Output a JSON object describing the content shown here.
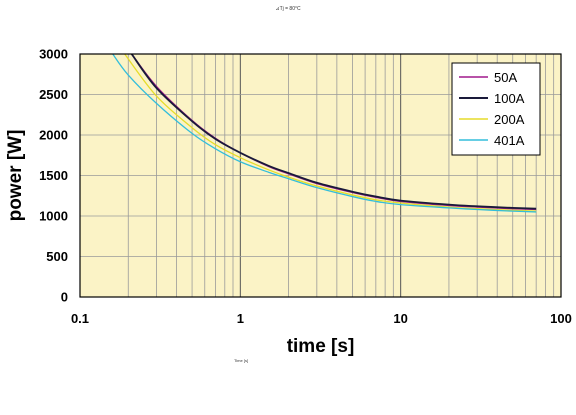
{
  "header_note": "⊿Tj = 80°C",
  "footer_note": "Time [s]",
  "colors": {
    "plot_background": "#fbf3c6",
    "grid": "#9a9a9a",
    "axis": "#000000"
  },
  "chart_data": {
    "type": "line",
    "title": "",
    "xlabel": "time [s]",
    "ylabel": "power [W]",
    "x_scale": "log",
    "xlim": [
      0.1,
      100
    ],
    "ylim": [
      0,
      3000
    ],
    "x_ticks": [
      "0.1",
      "1",
      "10",
      "100"
    ],
    "y_ticks": [
      "0",
      "500",
      "1000",
      "1500",
      "2000",
      "2500",
      "3000"
    ],
    "grid": true,
    "legend_position": "top-right",
    "series": [
      {
        "name": "50A",
        "color": "#a0198c",
        "x": [
          0.21,
          0.3,
          0.5,
          0.7,
          1,
          1.5,
          2,
          3,
          5,
          7,
          10,
          20,
          30,
          50,
          70
        ],
        "y": [
          3000,
          2600,
          2180,
          1960,
          1780,
          1610,
          1520,
          1400,
          1290,
          1230,
          1180,
          1130,
          1110,
          1090,
          1080
        ]
      },
      {
        "name": "100A",
        "color": "#1a1a3a",
        "x": [
          0.21,
          0.3,
          0.5,
          0.7,
          1,
          1.5,
          2,
          3,
          5,
          7,
          10,
          20,
          30,
          50,
          70
        ],
        "y": [
          3000,
          2580,
          2170,
          1950,
          1780,
          1620,
          1530,
          1410,
          1300,
          1240,
          1190,
          1140,
          1120,
          1100,
          1090
        ]
      },
      {
        "name": "200A",
        "color": "#e6dc2a",
        "x": [
          0.19,
          0.3,
          0.5,
          0.7,
          1,
          1.5,
          2,
          3,
          5,
          7,
          10,
          20,
          30,
          50,
          70
        ],
        "y": [
          3000,
          2480,
          2090,
          1880,
          1720,
          1570,
          1480,
          1370,
          1260,
          1200,
          1160,
          1110,
          1090,
          1070,
          1060
        ]
      },
      {
        "name": "401A",
        "color": "#33bedb",
        "x": [
          0.16,
          0.2,
          0.3,
          0.5,
          0.7,
          1,
          1.5,
          2,
          3,
          5,
          7,
          10,
          20,
          30,
          50,
          70
        ],
        "y": [
          3000,
          2740,
          2390,
          2020,
          1830,
          1670,
          1540,
          1460,
          1350,
          1240,
          1180,
          1140,
          1100,
          1080,
          1060,
          1050
        ]
      }
    ]
  }
}
